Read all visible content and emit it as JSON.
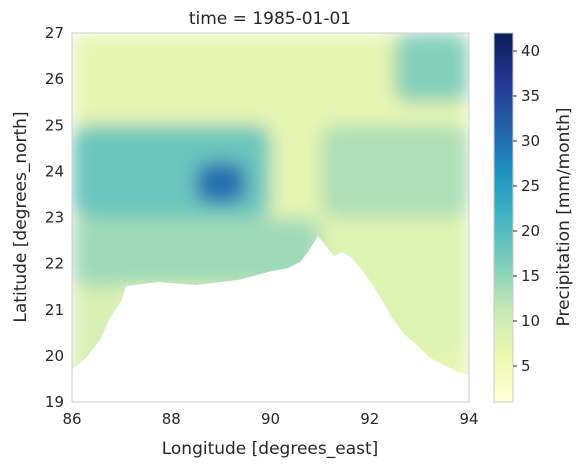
{
  "chart_data": {
    "type": "heatmap",
    "title": "time = 1985-01-01",
    "xlabel": "Longitude [degrees_east]",
    "ylabel": "Latitude [degrees_north]",
    "xlim": [
      86,
      94
    ],
    "ylim": [
      19,
      27
    ],
    "xticks": [
      "86",
      "88",
      "90",
      "92",
      "94"
    ],
    "yticks": [
      "19",
      "20",
      "21",
      "22",
      "23",
      "24",
      "25",
      "26",
      "27"
    ],
    "colorbar": {
      "label": "Precipitation [mm/month]",
      "range": [
        1,
        42
      ],
      "ticks": [
        "5",
        "10",
        "15",
        "20",
        "25",
        "30",
        "35",
        "40"
      ],
      "colormap": [
        "#ffffd9",
        "#edf8b1",
        "#c7e9b4",
        "#7fcdbb",
        "#41b6c4",
        "#1d91c0",
        "#225ea8",
        "#253494",
        "#081d58"
      ]
    },
    "grid": false,
    "regions": [
      {
        "lon": [
          86.0,
          94.0
        ],
        "lat": [
          25.0,
          27.0
        ],
        "value": 7
      },
      {
        "lon": [
          92.5,
          94.0
        ],
        "lat": [
          25.5,
          27.0
        ],
        "value": 16
      },
      {
        "lon": [
          86.0,
          90.0
        ],
        "lat": [
          23.0,
          25.0
        ],
        "value": 18
      },
      {
        "lon": [
          88.5,
          89.5
        ],
        "lat": [
          23.3,
          24.2
        ],
        "value": 30
      },
      {
        "lon": [
          91.0,
          94.0
        ],
        "lat": [
          23.0,
          25.0
        ],
        "value": 13
      },
      {
        "lon": [
          86.0,
          91.0
        ],
        "lat": [
          21.5,
          23.0
        ],
        "value": 14
      },
      {
        "lon": [
          91.0,
          94.0
        ],
        "lat": [
          20.0,
          23.0
        ],
        "value": 8
      },
      {
        "lon": [
          86.0,
          87.0
        ],
        "lat": [
          19.5,
          21.5
        ],
        "value": 9
      }
    ]
  }
}
